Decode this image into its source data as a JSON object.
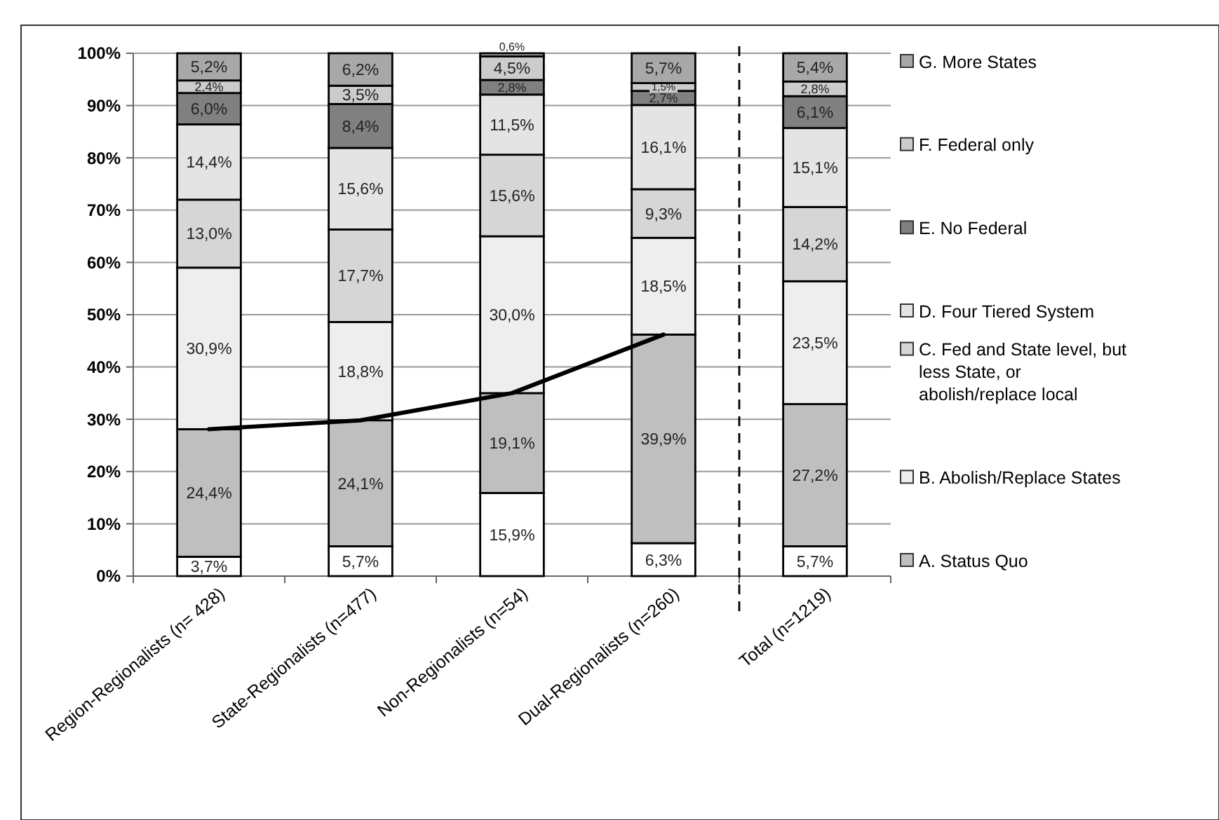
{
  "chart_data": {
    "type": "bar",
    "stacked": true,
    "categories": [
      "Region-Regionalists (n= 428)",
      "State-Regionalists (n=477)",
      "Non-Regionalists (n=54)",
      "Dual-Regionalists (n=260)",
      "Total (n=1219)"
    ],
    "series": [
      {
        "color": "#ffffff",
        "values": [
          3.7,
          5.7,
          15.9,
          6.3,
          5.7
        ],
        "value_labels": [
          "3,7%",
          "5,7%",
          "15,9%",
          "6,3%",
          "5,7%"
        ]
      },
      {
        "name": "A. Status Quo",
        "color": "#bfbfbf",
        "values": [
          24.4,
          24.1,
          19.1,
          39.9,
          27.2
        ],
        "value_labels": [
          "24,4%",
          "24,1%",
          "19,1%",
          "39,9%",
          "27,2%"
        ]
      },
      {
        "name": "B. Abolish/Replace States",
        "color": "#eeeeee",
        "values": [
          30.9,
          18.8,
          30.0,
          18.5,
          23.5
        ],
        "value_labels": [
          "30,9%",
          "18,8%",
          "30,0%",
          "18,5%",
          "23,5%"
        ]
      },
      {
        "name": "C. Fed and State level, but less State, or abolish/replace local",
        "color": "#d6d6d6",
        "values": [
          13.0,
          17.7,
          15.6,
          9.3,
          14.2
        ],
        "value_labels": [
          "13,0%",
          "17,7%",
          "15,6%",
          "9,3%",
          "14,2%"
        ]
      },
      {
        "name": "D. Four Tiered System",
        "color": "#e4e4e4",
        "values": [
          14.4,
          15.6,
          11.5,
          16.1,
          15.1
        ],
        "value_labels": [
          "14,4%",
          "15,6%",
          "11,5%",
          "16,1%",
          "15,1%"
        ]
      },
      {
        "name": "E. No Federal",
        "color": "#808080",
        "values": [
          6.0,
          8.4,
          2.8,
          2.7,
          6.1
        ],
        "value_labels": [
          "6,0%",
          "8,4%",
          "2,8%",
          "2,7%",
          "6,1%"
        ]
      },
      {
        "name": "F. Federal only",
        "color": "#cccccc",
        "values": [
          2.4,
          3.5,
          4.5,
          1.5,
          2.8
        ],
        "value_labels": [
          "2,4%",
          "3,5%",
          "4,5%",
          "1,5%",
          "2,8%"
        ]
      },
      {
        "name": "G. More States",
        "color": "#a8a8a8",
        "values": [
          5.2,
          6.2,
          0.6,
          5.7,
          5.4
        ],
        "value_labels": [
          "5,2%",
          "6,2%",
          "0,6%",
          "5,7%",
          "5,4%"
        ]
      },
      {
        "type": "line",
        "color": "#000000",
        "values": [
          28.1,
          29.8,
          35.0,
          46.2,
          null
        ]
      }
    ],
    "ylim": [
      0,
      100
    ],
    "yticks": [
      {
        "value": 0,
        "label": "0%"
      },
      {
        "value": 10,
        "label": "10%"
      },
      {
        "value": 20,
        "label": "20%"
      },
      {
        "value": 30,
        "label": "30%"
      },
      {
        "value": 40,
        "label": "40%"
      },
      {
        "value": 50,
        "label": "50%"
      },
      {
        "value": 60,
        "label": "60%"
      },
      {
        "value": 70,
        "label": "70%"
      },
      {
        "value": 80,
        "label": "80%"
      },
      {
        "value": 90,
        "label": "90%"
      },
      {
        "value": 100,
        "label": "100%"
      }
    ],
    "grid": "y",
    "legend": "right",
    "line_style": "solid",
    "marker": "none"
  }
}
